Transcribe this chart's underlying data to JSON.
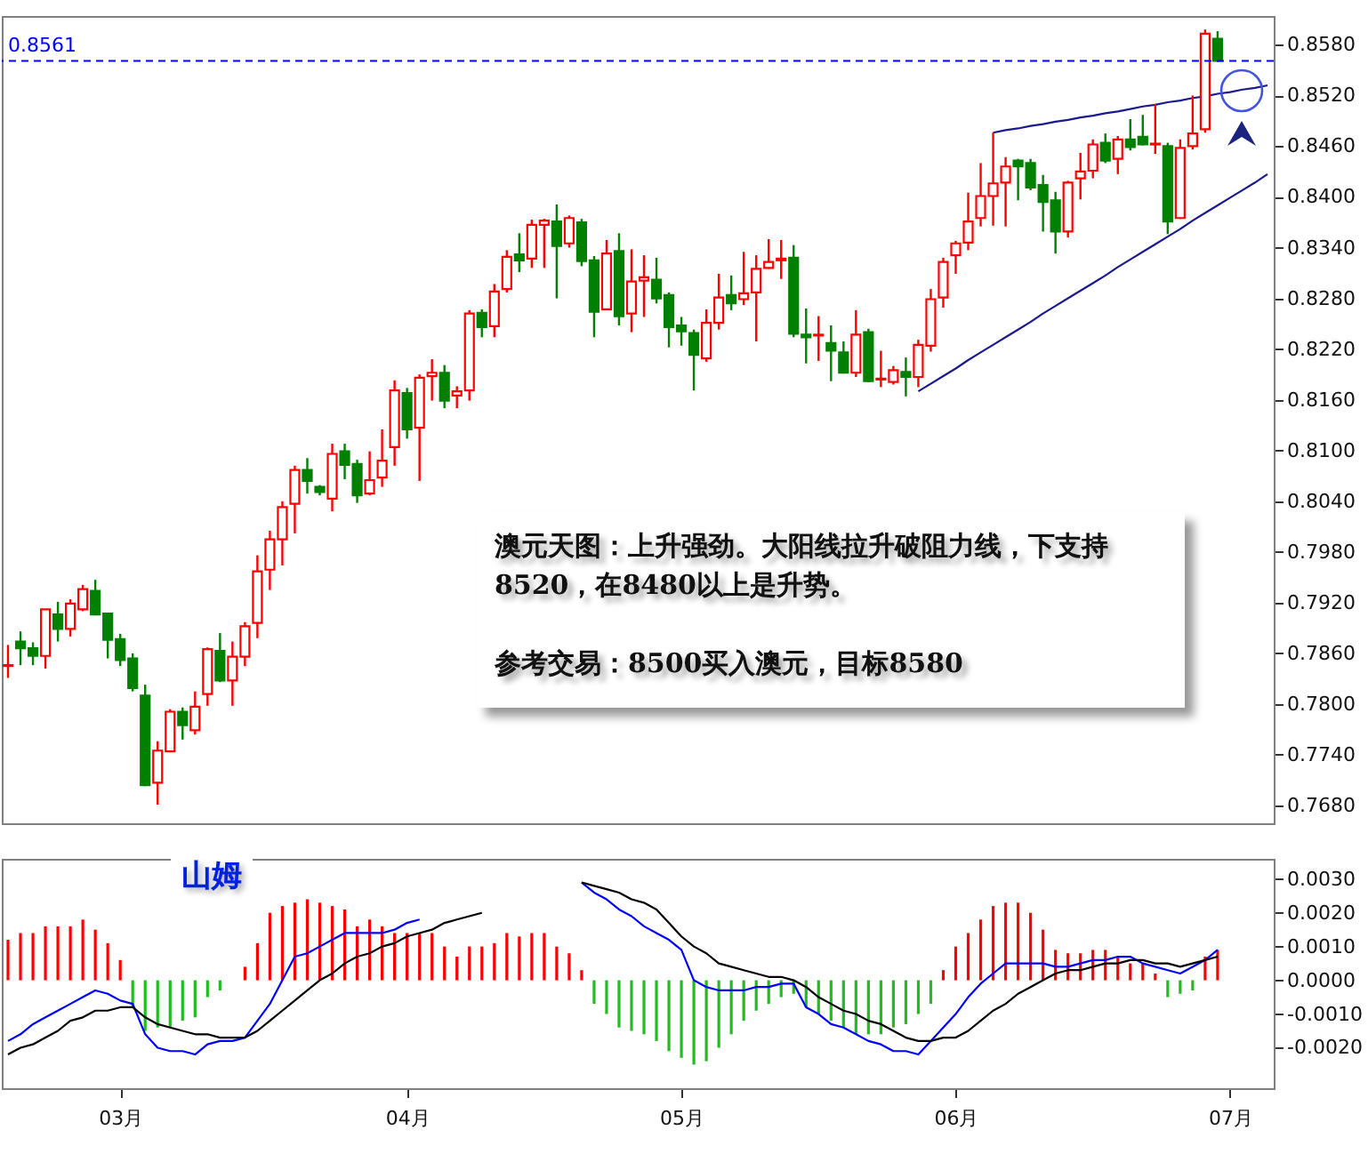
{
  "chart_data": [
    {
      "type": "candlestick",
      "ylim": [
        0.7659,
        0.8614
      ],
      "categories": [
        null,
        null,
        null,
        null,
        null,
        null,
        null,
        null,
        null,
        null,
        null,
        null,
        null,
        null,
        null,
        null,
        null,
        null,
        null,
        null,
        null,
        null,
        null,
        null,
        null,
        null,
        null,
        null,
        null,
        null,
        null,
        null,
        null,
        null,
        null,
        null,
        null,
        null,
        null,
        null,
        null,
        null,
        null,
        null,
        null,
        null,
        null,
        null,
        null,
        null,
        null,
        null,
        null,
        null,
        null,
        null,
        null,
        null,
        null,
        null,
        null,
        null,
        null,
        null,
        null,
        null,
        null,
        null,
        null,
        null,
        null,
        null,
        null,
        null,
        null,
        null,
        null,
        null,
        null,
        null,
        null,
        null,
        null,
        null,
        null,
        null,
        null,
        null,
        null,
        null,
        null,
        null,
        null,
        null,
        null,
        null,
        null,
        null,
        null,
        null,
        null,
        null
      ],
      "yticks": [
        {
          "value": 0.768,
          "label": "0.7680"
        },
        {
          "value": 0.774,
          "label": "0.7740"
        },
        {
          "value": 0.78,
          "label": "0.7800"
        },
        {
          "value": 0.786,
          "label": "0.7860"
        },
        {
          "value": 0.792,
          "label": "0.7920"
        },
        {
          "value": 0.798,
          "label": "0.7980"
        },
        {
          "value": 0.804,
          "label": "0.8040"
        },
        {
          "value": 0.81,
          "label": "0.8100"
        },
        {
          "value": 0.816,
          "label": "0.8160"
        },
        {
          "value": 0.822,
          "label": "0.8220"
        },
        {
          "value": 0.828,
          "label": "0.8280"
        },
        {
          "value": 0.834,
          "label": "0.8340"
        },
        {
          "value": 0.84,
          "label": "0.8400"
        },
        {
          "value": 0.846,
          "label": "0.8460"
        },
        {
          "value": 0.852,
          "label": "0.8520"
        },
        {
          "value": 0.858,
          "label": "0.8580"
        }
      ],
      "ohlc": [
        [
          0.7845,
          0.787,
          0.7831,
          0.7846
        ],
        [
          0.7874,
          0.7886,
          0.7846,
          0.7866
        ],
        [
          0.7866,
          0.7873,
          0.7846,
          0.7857
        ],
        [
          0.7857,
          0.7912,
          0.7842,
          0.7912
        ],
        [
          0.7906,
          0.7921,
          0.7874,
          0.7889
        ],
        [
          0.7889,
          0.7924,
          0.788,
          0.7919
        ],
        [
          0.7912,
          0.7941,
          0.791,
          0.7936
        ],
        [
          0.7934,
          0.7947,
          0.7905,
          0.7906
        ],
        [
          0.7907,
          0.7908,
          0.7854,
          0.7876
        ],
        [
          0.7877,
          0.7883,
          0.7845,
          0.7852
        ],
        [
          0.7854,
          0.786,
          0.7815,
          0.7819
        ],
        [
          0.781,
          0.7823,
          0.7703,
          0.7704
        ],
        [
          0.7707,
          0.7756,
          0.7681,
          0.7745
        ],
        [
          0.7744,
          0.7794,
          0.7743,
          0.7791
        ],
        [
          0.7791,
          0.7796,
          0.7758,
          0.7775
        ],
        [
          0.7769,
          0.7815,
          0.7764,
          0.7797
        ],
        [
          0.7812,
          0.7867,
          0.7798,
          0.7865
        ],
        [
          0.7863,
          0.7884,
          0.7826,
          0.7828
        ],
        [
          0.7828,
          0.7874,
          0.7798,
          0.7856
        ],
        [
          0.7856,
          0.7897,
          0.7845,
          0.7892
        ],
        [
          0.7896,
          0.7976,
          0.7878,
          0.7957
        ],
        [
          0.7959,
          0.8005,
          0.7935,
          0.7995
        ],
        [
          0.7995,
          0.804,
          0.7964,
          0.8033
        ],
        [
          0.8037,
          0.8082,
          0.8002,
          0.8077
        ],
        [
          0.8077,
          0.8091,
          0.8049,
          0.8064
        ],
        [
          0.8057,
          0.8059,
          0.8047,
          0.8051
        ],
        [
          0.8043,
          0.8108,
          0.8028,
          0.8096
        ],
        [
          0.8099,
          0.8108,
          0.8066,
          0.8083
        ],
        [
          0.8084,
          0.8089,
          0.8038,
          0.8047
        ],
        [
          0.8049,
          0.8099,
          0.8047,
          0.8065
        ],
        [
          0.8068,
          0.8125,
          0.8057,
          0.8088
        ],
        [
          0.8104,
          0.8183,
          0.8082,
          0.8171
        ],
        [
          0.8168,
          0.8174,
          0.8114,
          0.8125
        ],
        [
          0.8127,
          0.819,
          0.8064,
          0.8186
        ],
        [
          0.8188,
          0.8208,
          0.8159,
          0.8192
        ],
        [
          0.8192,
          0.8201,
          0.815,
          0.8159
        ],
        [
          0.8165,
          0.8176,
          0.815,
          0.817
        ],
        [
          0.8171,
          0.8266,
          0.8159,
          0.8262
        ],
        [
          0.8263,
          0.8267,
          0.8234,
          0.8246
        ],
        [
          0.8247,
          0.8297,
          0.8234,
          0.8288
        ],
        [
          0.8291,
          0.8337,
          0.8287,
          0.8329
        ],
        [
          0.8332,
          0.8357,
          0.8311,
          0.8325
        ],
        [
          0.8327,
          0.8373,
          0.8316,
          0.8367
        ],
        [
          0.8367,
          0.8374,
          0.8316,
          0.8372
        ],
        [
          0.8371,
          0.8391,
          0.828,
          0.8342
        ],
        [
          0.8345,
          0.8378,
          0.834,
          0.8375
        ],
        [
          0.837,
          0.8374,
          0.8318,
          0.8324
        ],
        [
          0.8325,
          0.833,
          0.8234,
          0.8264
        ],
        [
          0.8267,
          0.8349,
          0.8266,
          0.8333
        ],
        [
          0.8336,
          0.8357,
          0.8248,
          0.8259
        ],
        [
          0.8262,
          0.8338,
          0.824,
          0.83
        ],
        [
          0.8301,
          0.8331,
          0.8258,
          0.8305
        ],
        [
          0.8302,
          0.8328,
          0.8274,
          0.828
        ],
        [
          0.8284,
          0.8287,
          0.8222,
          0.8246
        ],
        [
          0.8248,
          0.8258,
          0.8224,
          0.8241
        ],
        [
          0.8239,
          0.8243,
          0.8171,
          0.8213
        ],
        [
          0.8209,
          0.8267,
          0.8205,
          0.8251
        ],
        [
          0.8251,
          0.8309,
          0.8243,
          0.8281
        ],
        [
          0.8284,
          0.8307,
          0.8266,
          0.8274
        ],
        [
          0.8279,
          0.8335,
          0.8272,
          0.8286
        ],
        [
          0.8287,
          0.8331,
          0.8229,
          0.8315
        ],
        [
          0.8316,
          0.835,
          0.8315,
          0.8323
        ],
        [
          0.8325,
          0.8349,
          0.8303,
          0.8327
        ],
        [
          0.8328,
          0.8343,
          0.8234,
          0.8238
        ],
        [
          0.8237,
          0.8268,
          0.8203,
          0.8234
        ],
        [
          0.8236,
          0.8259,
          0.8206,
          0.8237
        ],
        [
          0.8227,
          0.8248,
          0.8182,
          0.8218
        ],
        [
          0.8216,
          0.8229,
          0.8191,
          0.8192
        ],
        [
          0.8192,
          0.8266,
          0.8187,
          0.8237
        ],
        [
          0.824,
          0.8244,
          0.8181,
          0.8182
        ],
        [
          0.8184,
          0.8218,
          0.8175,
          0.8185
        ],
        [
          0.8181,
          0.82,
          0.8178,
          0.8195
        ],
        [
          0.8193,
          0.821,
          0.8164,
          0.8187
        ],
        [
          0.8187,
          0.8231,
          0.8175,
          0.8225
        ],
        [
          0.8224,
          0.8291,
          0.8217,
          0.8279
        ],
        [
          0.8281,
          0.8328,
          0.8269,
          0.8323
        ],
        [
          0.8331,
          0.8348,
          0.8309,
          0.8345
        ],
        [
          0.8346,
          0.8405,
          0.8337,
          0.8371
        ],
        [
          0.8375,
          0.844,
          0.8365,
          0.8401
        ],
        [
          0.8401,
          0.8476,
          0.8366,
          0.8416
        ],
        [
          0.8417,
          0.8447,
          0.8365,
          0.8436
        ],
        [
          0.8443,
          0.8445,
          0.8396,
          0.8436
        ],
        [
          0.844,
          0.8445,
          0.8408,
          0.8411
        ],
        [
          0.8414,
          0.8426,
          0.8359,
          0.8394
        ],
        [
          0.8396,
          0.8406,
          0.8333,
          0.8359
        ],
        [
          0.8359,
          0.8419,
          0.8352,
          0.8417
        ],
        [
          0.8422,
          0.8452,
          0.8397,
          0.843
        ],
        [
          0.8431,
          0.8468,
          0.8422,
          0.8462
        ],
        [
          0.8464,
          0.8475,
          0.844,
          0.8443
        ],
        [
          0.8445,
          0.8472,
          0.8427,
          0.8468
        ],
        [
          0.8468,
          0.8492,
          0.8455,
          0.8459
        ],
        [
          0.8471,
          0.8497,
          0.8461,
          0.8462
        ],
        [
          0.8462,
          0.851,
          0.8451,
          0.8463
        ],
        [
          0.846,
          0.8464,
          0.8356,
          0.8371
        ],
        [
          0.8375,
          0.8468,
          0.8374,
          0.8458
        ],
        [
          0.846,
          0.852,
          0.8456,
          0.8475
        ],
        [
          0.848,
          0.8598,
          0.8476,
          0.8593
        ],
        [
          0.8587,
          0.8596,
          0.856,
          0.8561
        ],
        null,
        null,
        null,
        null
      ],
      "colors": [
        "#ff0000",
        "#008000",
        "#008000",
        "#ff0000",
        "#008000",
        "#ff0000",
        "#ff0000",
        "#008000",
        "#008000",
        "#008000",
        "#008000",
        "#008000",
        "#ff0000",
        "#ff0000",
        "#008000",
        "#ff0000",
        "#ff0000",
        "#008000",
        "#ff0000",
        "#ff0000",
        "#ff0000",
        "#ff0000",
        "#ff0000",
        "#ff0000",
        "#008000",
        "#008000",
        "#ff0000",
        "#008000",
        "#008000",
        "#ff0000",
        "#ff0000",
        "#ff0000",
        "#008000",
        "#ff0000",
        "#ff0000",
        "#008000",
        "#ff0000",
        "#ff0000",
        "#008000",
        "#ff0000",
        "#ff0000",
        "#008000",
        "#ff0000",
        "#ff0000",
        "#008000",
        "#ff0000",
        "#008000",
        "#008000",
        "#ff0000",
        "#008000",
        "#ff0000",
        "#ff0000",
        "#008000",
        "#008000",
        "#008000",
        "#008000",
        "#ff0000",
        "#ff0000",
        "#008000",
        "#ff0000",
        "#ff0000",
        "#ff0000",
        "#ff0000",
        "#008000",
        "#008000",
        "#ff0000",
        "#008000",
        "#008000",
        "#ff0000",
        "#008000",
        "#ff0000",
        "#ff0000",
        "#008000",
        "#ff0000",
        "#ff0000",
        "#ff0000",
        "#ff0000",
        "#ff0000",
        "#ff0000",
        "#ff0000",
        "#ff0000",
        "#008000",
        "#008000",
        "#008000",
        "#008000",
        "#ff0000",
        "#ff0000",
        "#ff0000",
        "#008000",
        "#ff0000",
        "#008000",
        "#008000",
        "#ff0000",
        "#008000",
        "#ff0000",
        "#ff0000",
        "#ff0000",
        "#008000",
        null,
        null,
        null,
        null
      ],
      "series": [
        {
          "type": "line",
          "color": "#1a1a8c",
          "values": [
            null,
            null,
            null,
            null,
            null,
            null,
            null,
            null,
            null,
            null,
            null,
            null,
            null,
            null,
            null,
            null,
            null,
            null,
            null,
            null,
            null,
            null,
            null,
            null,
            null,
            null,
            null,
            null,
            null,
            null,
            null,
            null,
            null,
            null,
            null,
            null,
            null,
            null,
            null,
            null,
            null,
            null,
            null,
            null,
            null,
            null,
            null,
            null,
            null,
            null,
            null,
            null,
            null,
            null,
            null,
            null,
            null,
            null,
            null,
            null,
            null,
            null,
            null,
            null,
            null,
            null,
            null,
            null,
            null,
            null,
            null,
            null,
            null,
            null,
            null,
            null,
            null,
            null,
            null,
            0.8476,
            0.8479,
            0.8481,
            0.8484,
            0.8486,
            0.8489,
            0.8491,
            0.8494,
            0.8496,
            0.8499,
            0.8501,
            0.8504,
            0.8507,
            0.8509,
            0.8512,
            0.8514,
            0.8517,
            0.8519,
            0.8522,
            0.8524,
            0.8527,
            0.8529,
            0.8532
          ]
        },
        {
          "type": "line",
          "color": "#1a1a8c",
          "values": [
            null,
            null,
            null,
            null,
            null,
            null,
            null,
            null,
            null,
            null,
            null,
            null,
            null,
            null,
            null,
            null,
            null,
            null,
            null,
            null,
            null,
            null,
            null,
            null,
            null,
            null,
            null,
            null,
            null,
            null,
            null,
            null,
            null,
            null,
            null,
            null,
            null,
            null,
            null,
            null,
            null,
            null,
            null,
            null,
            null,
            null,
            null,
            null,
            null,
            null,
            null,
            null,
            null,
            null,
            null,
            null,
            null,
            null,
            null,
            null,
            null,
            null,
            null,
            null,
            null,
            null,
            null,
            null,
            null,
            null,
            null,
            null,
            null,
            0.817,
            0.8179,
            0.8188,
            0.8197,
            0.8207,
            0.8216,
            0.8225,
            0.8234,
            0.8243,
            0.8252,
            0.8262,
            0.8271,
            0.828,
            0.8289,
            0.8298,
            0.8307,
            0.8317,
            0.8326,
            0.8335,
            0.8344,
            0.8353,
            0.8362,
            0.8372,
            0.8381,
            0.839,
            0.8399,
            0.8408,
            0.8417,
            0.8427
          ]
        }
      ],
      "ref_lines": [
        {
          "axis": "y",
          "value": 0.8561,
          "label": "0.8561",
          "color": "#0000ff",
          "line_style": "dashed"
        }
      ],
      "annotations": [
        "澳元天图：上升强劲。大阳线拉升破阻力线，下支持8520，在8480以上是升势。",
        "参考交易：8500买入澳元，目标8580"
      ]
    },
    {
      "type": "bar",
      "ylim": [
        -0.0032,
        0.0036
      ],
      "categories": [
        null,
        null,
        null,
        null,
        null,
        null,
        null,
        null,
        null,
        "03月",
        null,
        null,
        null,
        null,
        null,
        null,
        null,
        null,
        null,
        null,
        null,
        null,
        null,
        null,
        null,
        null,
        null,
        null,
        null,
        null,
        null,
        null,
        "04月",
        null,
        null,
        null,
        null,
        null,
        null,
        null,
        null,
        null,
        null,
        null,
        null,
        null,
        null,
        null,
        null,
        null,
        null,
        null,
        null,
        null,
        "05月",
        null,
        null,
        null,
        null,
        null,
        null,
        null,
        null,
        null,
        null,
        null,
        null,
        null,
        null,
        null,
        null,
        null,
        null,
        null,
        null,
        null,
        "06月",
        null,
        null,
        null,
        null,
        null,
        null,
        null,
        null,
        null,
        null,
        null,
        null,
        null,
        null,
        null,
        null,
        null,
        null,
        null,
        null,
        null,
        "07月",
        null,
        null,
        null
      ],
      "yticks": [
        {
          "value": -0.002,
          "label": "-0.0020"
        },
        {
          "value": -0.001,
          "label": "-0.0010"
        },
        {
          "value": 0,
          "label": "0.0000"
        },
        {
          "value": 0.001,
          "label": "0.0010"
        },
        {
          "value": 0.002,
          "label": "0.0020"
        },
        {
          "value": 0.003,
          "label": "0.0030"
        }
      ],
      "series": [
        {
          "values": [
            0.0012,
            0.0014,
            0.0014,
            0.0016,
            0.0016,
            0.0016,
            0.0018,
            0.0015,
            0.0011,
            0.0006,
            -0.0008,
            -0.0015,
            -0.0014,
            -0.0014,
            -0.0012,
            -0.0011,
            -0.0005,
            -0.0003,
            0,
            0.0004,
            0.0011,
            0.002,
            0.0022,
            0.0023,
            0.0024,
            0.0023,
            0.0022,
            0.0021,
            0.0016,
            0.0018,
            0.0016,
            0.0014,
            0.0014,
            0.0014,
            0.0014,
            0.001,
            0.0007,
            0.001,
            0.001,
            0.0011,
            0.0014,
            0.0013,
            0.0014,
            0.0014,
            0.001,
            0.0008,
            0.0003,
            -0.0007,
            -0.001,
            -0.0014,
            -0.0015,
            -0.0016,
            -0.0018,
            -0.0021,
            -0.0023,
            -0.0025,
            -0.0024,
            -0.002,
            -0.0016,
            -0.0012,
            -0.0009,
            -0.0007,
            -0.0005,
            -0.0004,
            -0.0008,
            -0.001,
            -0.0012,
            -0.0014,
            -0.0016,
            -0.0016,
            -0.0016,
            -0.0014,
            -0.0013,
            -0.001,
            -0.0007,
            0.0003,
            0.001,
            0.0014,
            0.0018,
            0.0022,
            0.0023,
            0.0023,
            0.002,
            0.0015,
            0.0009,
            0.0008,
            0.0008,
            0.0009,
            0.0009,
            0.0007,
            0.0005,
            0.0005,
            0.0002,
            -0.0005,
            -0.0004,
            -0.0003,
            0.0007,
            0.0009,
            null,
            null,
            null,
            null
          ],
          "colors": [
            "#ff0000",
            "#ff0000",
            "#ff0000",
            "#ff0000",
            "#ff0000",
            "#ff0000",
            "#ff0000",
            "#ff0000",
            "#ff0000",
            "#ff0000",
            "#22bb22",
            "#22bb22",
            "#22bb22",
            "#22bb22",
            "#22bb22",
            "#22bb22",
            "#22bb22",
            "#22bb22",
            "#ff0000",
            "#ff0000",
            "#ff0000",
            "#ff0000",
            "#ff0000",
            "#ff0000",
            "#ff0000",
            "#ff0000",
            "#ff0000",
            "#ff0000",
            "#ff0000",
            "#ff0000",
            "#ff0000",
            "#ff0000",
            "#ff0000",
            "#ff0000",
            "#ff0000",
            "#ff0000",
            "#ff0000",
            "#ff0000",
            "#ff0000",
            "#ff0000",
            "#ff0000",
            "#ff0000",
            "#ff0000",
            "#ff0000",
            "#ff0000",
            "#ff0000",
            "#ff0000",
            "#22bb22",
            "#22bb22",
            "#22bb22",
            "#22bb22",
            "#22bb22",
            "#22bb22",
            "#22bb22",
            "#22bb22",
            "#22bb22",
            "#22bb22",
            "#22bb22",
            "#22bb22",
            "#22bb22",
            "#22bb22",
            "#22bb22",
            "#22bb22",
            "#22bb22",
            "#22bb22",
            "#22bb22",
            "#22bb22",
            "#22bb22",
            "#22bb22",
            "#22bb22",
            "#22bb22",
            "#22bb22",
            "#22bb22",
            "#22bb22",
            "#22bb22",
            "#ff0000",
            "#ff0000",
            "#ff0000",
            "#ff0000",
            "#ff0000",
            "#ff0000",
            "#ff0000",
            "#ff0000",
            "#ff0000",
            "#ff0000",
            "#ff0000",
            "#ff0000",
            "#ff0000",
            "#ff0000",
            "#ff0000",
            "#ff0000",
            "#ff0000",
            "#ff0000",
            "#22bb22",
            "#22bb22",
            "#22bb22",
            "#ff0000",
            "#ff0000",
            null,
            null,
            null,
            null
          ]
        },
        {
          "type": "line",
          "color": "#0000ff",
          "values": [
            -0.0018,
            -0.0016,
            -0.0013,
            -0.0011,
            -0.0009,
            -0.0007,
            -0.0005,
            -0.0003,
            -0.0004,
            -0.0006,
            -0.0007,
            -0.0016,
            -0.002,
            -0.0021,
            -0.0021,
            -0.0022,
            -0.0019,
            -0.0018,
            -0.0018,
            -0.0017,
            -0.0012,
            -0.0007,
            0.0,
            0.0007,
            0.0008,
            0.001,
            0.0012,
            0.0014,
            0.0014,
            0.0014,
            0.0014,
            0.0015,
            0.0017,
            0.0018,
            null,
            null,
            null,
            null,
            null,
            null,
            null,
            null,
            null,
            null,
            null,
            null,
            0.0029,
            0.0026,
            0.0024,
            0.0021,
            0.0019,
            0.0016,
            0.0014,
            0.0012,
            0.0009,
            0.0,
            -0.0002,
            -0.0003,
            -0.0003,
            -0.0003,
            -0.0002,
            -0.0002,
            -0.0001,
            -0.0001,
            -0.0008,
            -0.001,
            -0.0013,
            -0.0014,
            -0.0016,
            -0.0018,
            -0.0019,
            -0.0021,
            -0.0021,
            -0.0022,
            -0.0018,
            -0.0014,
            -0.001,
            -0.0005,
            -0.0001,
            0.0002,
            0.0005,
            0.0005,
            0.0005,
            0.0005,
            0.0004,
            0.0004,
            0.0005,
            0.0006,
            0.0006,
            0.0007,
            0.0007,
            0.0005,
            0.0004,
            0.0003,
            0.0002,
            0.0004,
            0.0006,
            0.0009,
            null,
            null,
            null,
            null
          ]
        },
        {
          "type": "line",
          "color": "#000000",
          "values": [
            -0.0022,
            -0.002,
            -0.0019,
            -0.0017,
            -0.0015,
            -0.0012,
            -0.0011,
            -0.0009,
            -0.0009,
            -0.0008,
            -0.0008,
            -0.0011,
            -0.0013,
            -0.0014,
            -0.0015,
            -0.0016,
            -0.0016,
            -0.0017,
            -0.0017,
            -0.0017,
            -0.0015,
            -0.0012,
            -0.0009,
            -0.0006,
            -0.0003,
            0.0,
            0.0002,
            0.0005,
            0.0007,
            0.0008,
            0.001,
            0.0011,
            0.0013,
            0.0014,
            0.0015,
            0.0017,
            0.0018,
            0.0019,
            0.002,
            null,
            null,
            null,
            null,
            null,
            null,
            null,
            0.0029,
            0.0028,
            0.0027,
            0.0026,
            0.0024,
            0.0023,
            0.0021,
            0.0017,
            0.0013,
            0.001,
            0.0008,
            0.0005,
            0.0004,
            0.0003,
            0.0002,
            0.0001,
            0.0001,
            0.0,
            -0.0002,
            -0.0005,
            -0.0007,
            -0.0009,
            -0.001,
            -0.0012,
            -0.0013,
            -0.0015,
            -0.0017,
            -0.0018,
            -0.0018,
            -0.0017,
            -0.0017,
            -0.0015,
            -0.0012,
            -0.0009,
            -0.0007,
            -0.0004,
            -0.0002,
            0.0,
            0.0002,
            0.0003,
            0.0003,
            0.0004,
            0.0005,
            0.0005,
            0.0006,
            0.0006,
            0.0005,
            0.0005,
            0.0004,
            0.0005,
            0.0006,
            0.0007,
            null,
            null,
            null,
            null
          ]
        }
      ],
      "annotations": [
        "山姆"
      ]
    }
  ]
}
